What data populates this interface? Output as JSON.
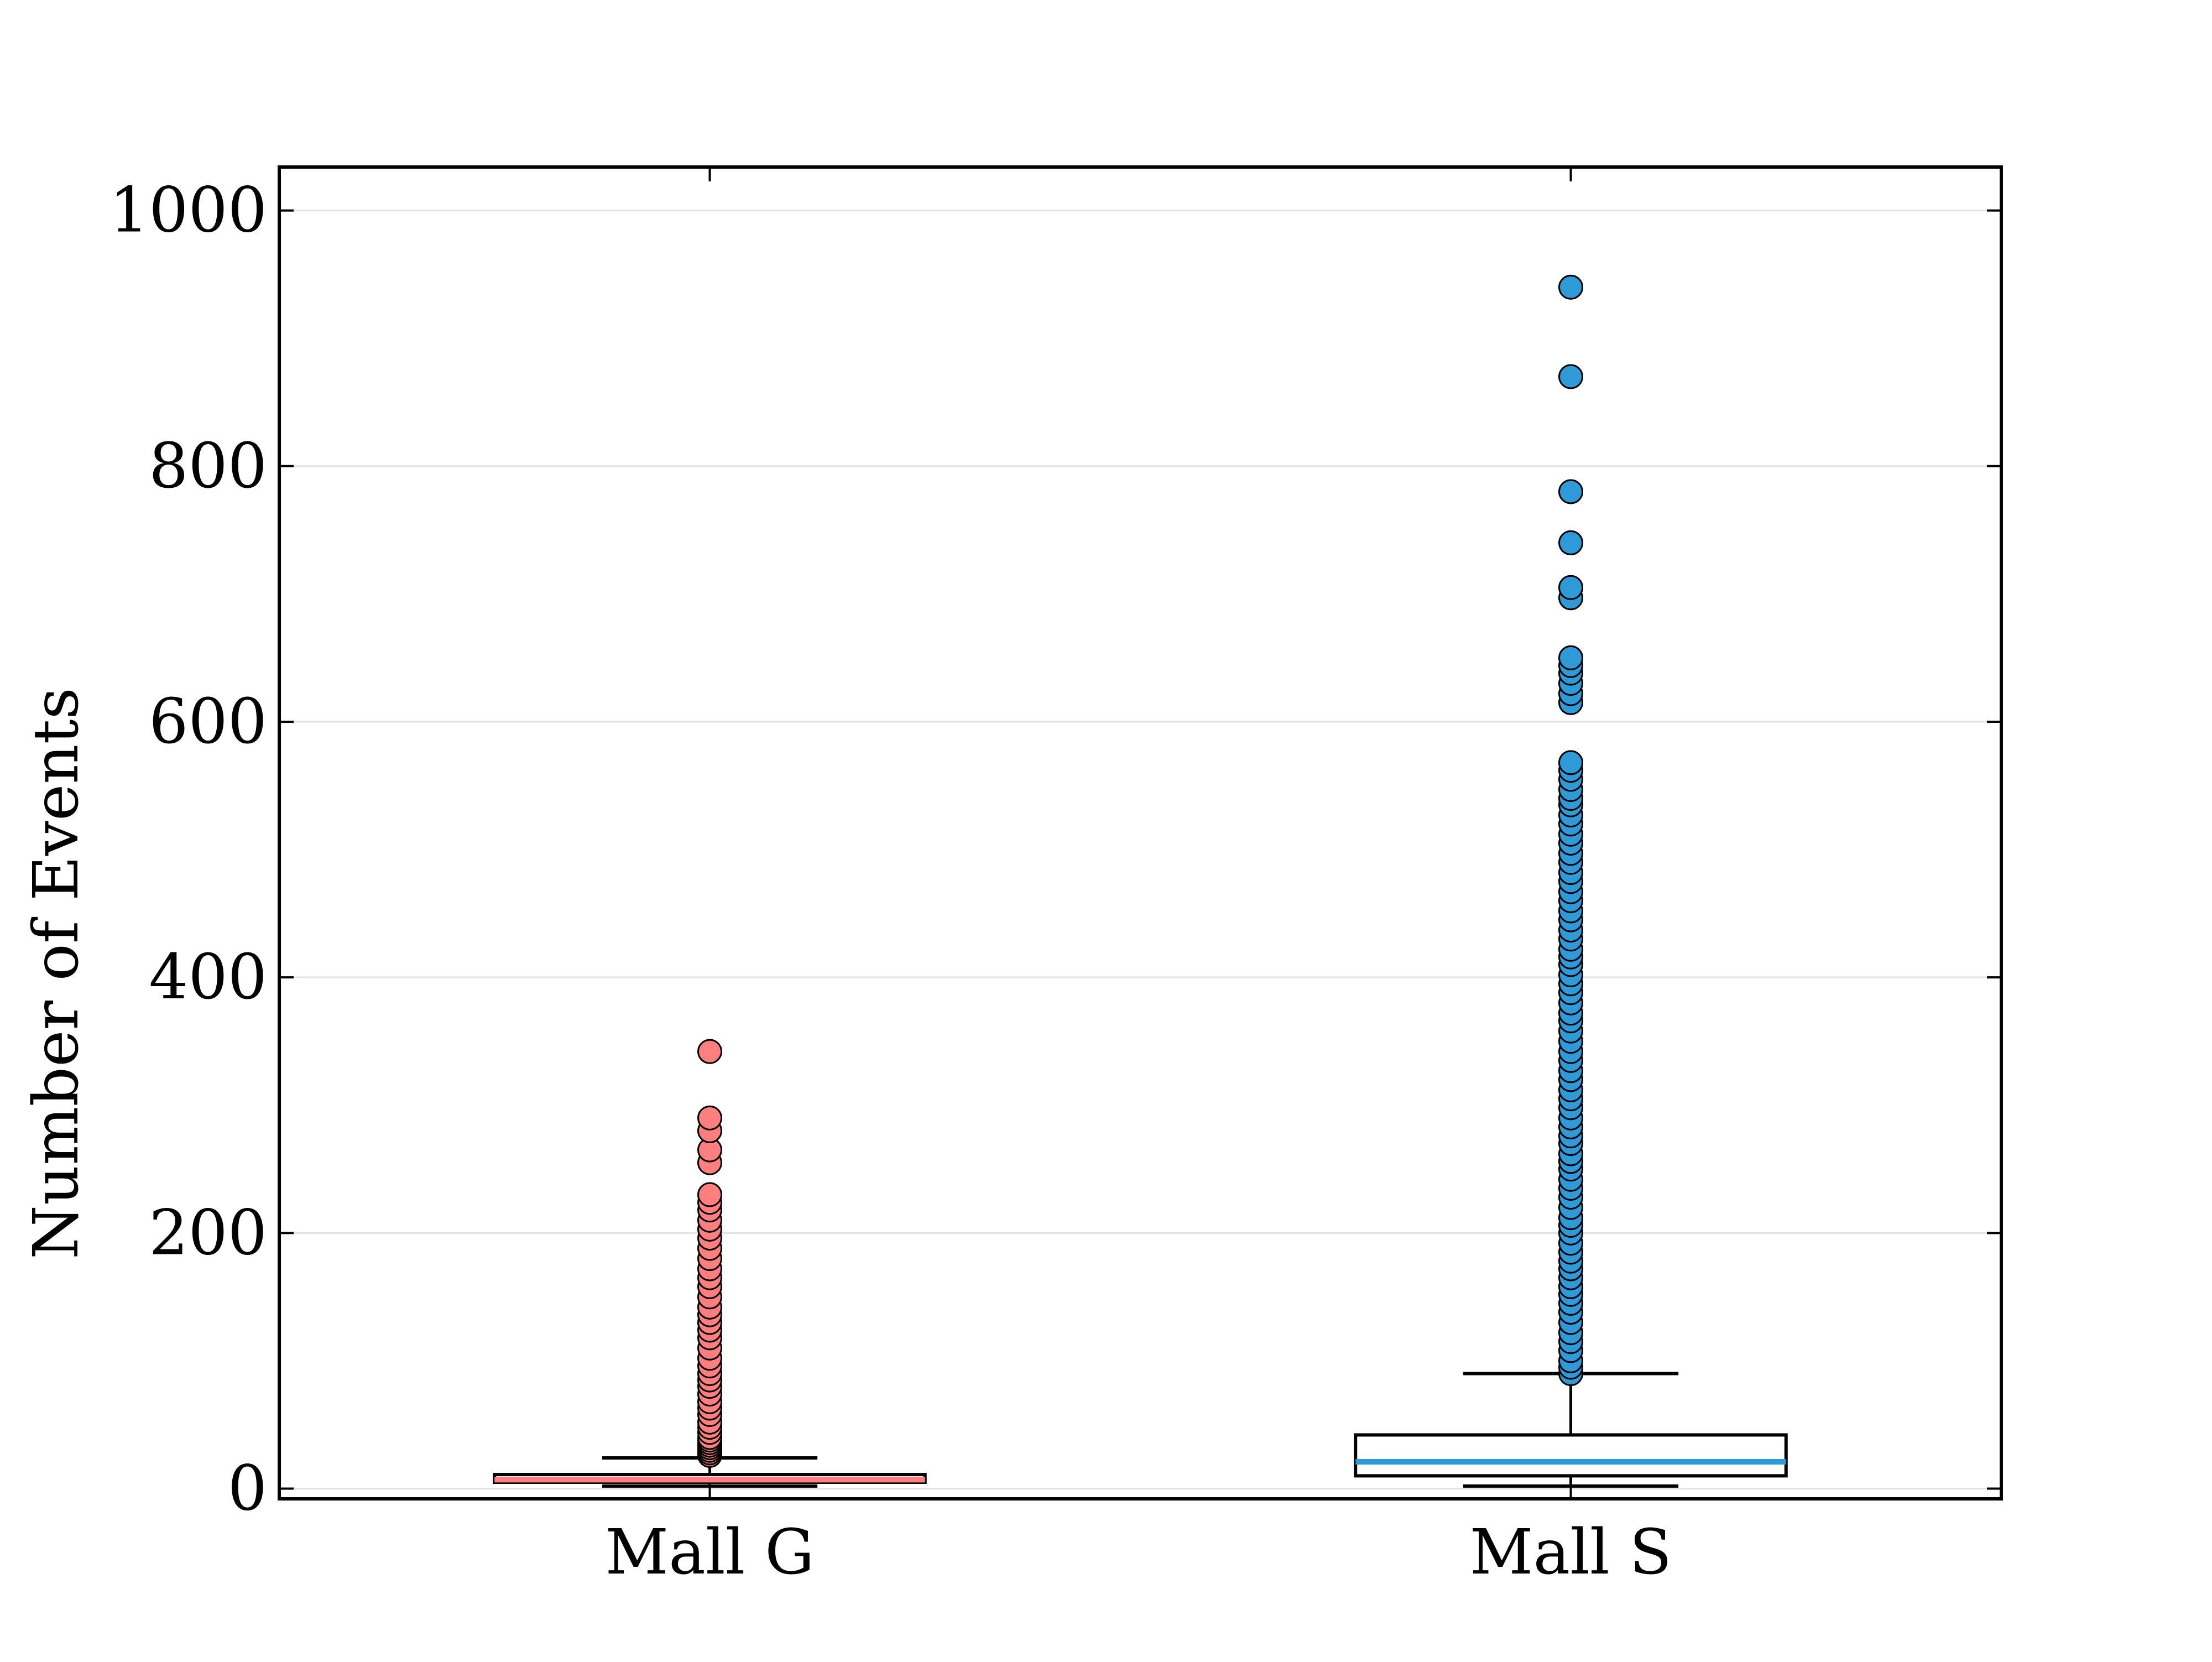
{
  "chart_data": {
    "type": "box",
    "title": "",
    "xlabel": "",
    "ylabel": "Number of Events",
    "ylim": [
      -8,
      1034
    ],
    "yticks": [
      0,
      200,
      400,
      600,
      800,
      1000
    ],
    "grid": "horizontal",
    "categories": [
      "Mall G",
      "Mall S"
    ],
    "series": [
      {
        "category": "Mall G",
        "color": "#ff7f7f",
        "whisker_low": 2,
        "q1": 5,
        "median": 7,
        "q3": 11,
        "whisker_high": 24,
        "outliers": [
          26,
          28,
          30,
          32,
          34,
          36,
          38,
          40,
          44,
          48,
          52,
          58,
          63,
          68,
          74,
          80,
          85,
          90,
          96,
          102,
          110,
          118,
          124,
          130,
          136,
          142,
          150,
          158,
          165,
          172,
          180,
          188,
          196,
          203,
          210,
          218,
          224,
          230,
          255,
          265,
          280,
          290,
          342
        ]
      },
      {
        "category": "Mall S",
        "color": "#2e9bd8",
        "whisker_low": 2,
        "q1": 10,
        "median": 21,
        "q3": 42,
        "whisker_high": 90,
        "outliers": [
          90,
          95,
          100,
          108,
          115,
          122,
          130,
          138,
          145,
          152,
          158,
          165,
          172,
          178,
          185,
          192,
          200,
          206,
          212,
          220,
          228,
          235,
          242,
          250,
          256,
          262,
          270,
          276,
          283,
          290,
          298,
          305,
          312,
          320,
          327,
          335,
          342,
          350,
          358,
          366,
          372,
          380,
          388,
          395,
          402,
          410,
          416,
          422,
          430,
          437,
          445,
          452,
          460,
          467,
          475,
          482,
          490,
          497,
          505,
          512,
          520,
          527,
          535,
          540,
          547,
          555,
          562,
          568,
          615,
          622,
          630,
          638,
          644,
          650,
          697,
          705,
          740,
          780,
          870,
          940
        ]
      }
    ]
  }
}
